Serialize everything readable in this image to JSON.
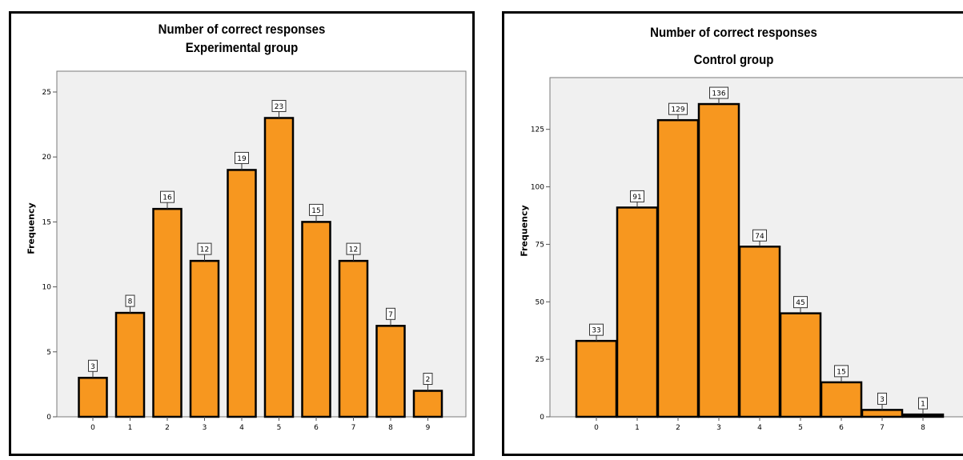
{
  "chart_data": [
    {
      "type": "bar",
      "title_line1": "Number of correct responses",
      "title_line2": "Experimental group",
      "ylabel": "Frequency",
      "xlabel": "",
      "categories": [
        "0",
        "1",
        "2",
        "3",
        "4",
        "5",
        "6",
        "7",
        "8",
        "9"
      ],
      "values": [
        3,
        8,
        16,
        12,
        19,
        23,
        15,
        12,
        7,
        2
      ],
      "yticks": [
        0,
        5,
        10,
        15,
        20,
        25
      ],
      "ylim": [
        0,
        26.6
      ],
      "grid": false,
      "colors": {
        "bar": "#f7971f",
        "bar_stroke": "#000000",
        "plot_bg": "#f0f0f0"
      }
    },
    {
      "type": "bar",
      "title_line1": "Number of correct responses",
      "title_line2": "Control group",
      "ylabel": "Frequency",
      "xlabel": "",
      "categories": [
        "0",
        "1",
        "2",
        "3",
        "4",
        "5",
        "6",
        "7",
        "8"
      ],
      "values": [
        33,
        91,
        129,
        136,
        74,
        45,
        15,
        3,
        1
      ],
      "yticks": [
        0,
        25,
        50,
        75,
        100,
        125
      ],
      "ylim": [
        0,
        147.5
      ],
      "grid": false,
      "colors": {
        "bar": "#f7971f",
        "bar_stroke": "#000000",
        "plot_bg": "#f0f0f0",
        "last_bar": "#000000"
      }
    }
  ]
}
